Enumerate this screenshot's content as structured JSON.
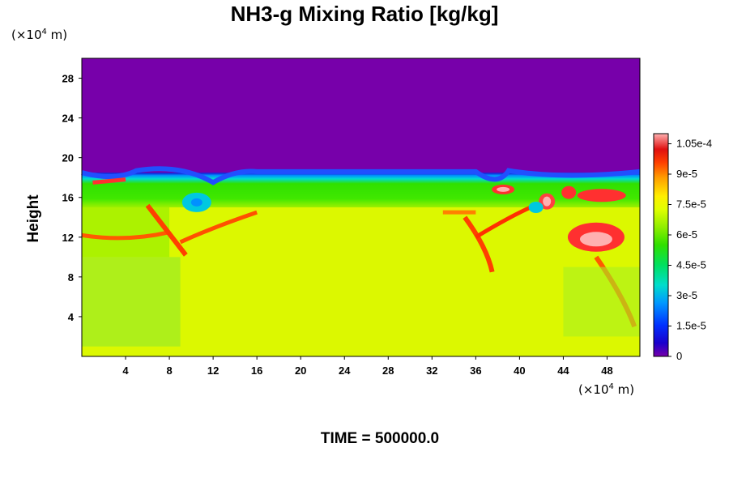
{
  "chart_data": {
    "type": "heatmap",
    "title": "NH3-g Mixing Ratio [kg/kg]",
    "ylabel": "Height",
    "x_unit_prefix": "(×10",
    "x_unit_exp": "4",
    "x_unit_suffix": " m)",
    "y_unit_prefix": "(×10",
    "y_unit_exp": "4",
    "y_unit_suffix": " m)",
    "xlim": [
      0,
      51
    ],
    "ylim": [
      0,
      30
    ],
    "x_ticks": [
      4,
      8,
      12,
      16,
      20,
      24,
      28,
      32,
      36,
      40,
      44,
      48
    ],
    "x_tick_labels": [
      "4",
      "8",
      "12",
      "16",
      "20",
      "24",
      "28",
      "32",
      "36",
      "40",
      "44",
      "48"
    ],
    "y_ticks": [
      4,
      8,
      12,
      16,
      20,
      24,
      28
    ],
    "y_tick_labels": [
      "4",
      "8",
      "12",
      "16",
      "20",
      "24",
      "28"
    ],
    "colorbar": {
      "min": 0,
      "max": 0.00011,
      "tick_values": [
        0,
        1.5e-05,
        3e-05,
        4.5e-05,
        6e-05,
        7.5e-05,
        9e-05,
        0.000105
      ],
      "tick_labels": [
        "0",
        "1.5e-5",
        "3e-5",
        "4.5e-5",
        "6e-5",
        "7.5e-5",
        "9e-5",
        "1.05e-4"
      ]
    },
    "field_regions": [
      {
        "name": "upper layer",
        "x": [
          0,
          51
        ],
        "y": [
          18.5,
          30
        ],
        "value": 0
      },
      {
        "name": "interface band",
        "x": [
          0,
          51
        ],
        "y": [
          15,
          18.5
        ],
        "value": 6e-05
      },
      {
        "name": "lower layer",
        "x": [
          0,
          51
        ],
        "y": [
          0,
          15
        ],
        "value": 7.7e-05
      }
    ],
    "time_label": "TIME = 500000.0"
  }
}
